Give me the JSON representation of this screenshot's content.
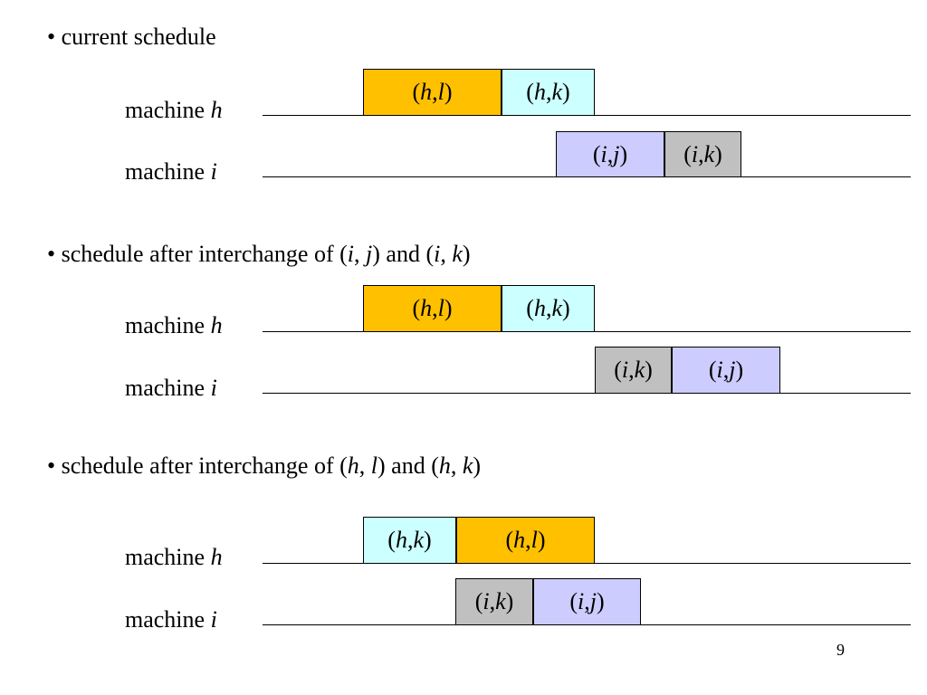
{
  "headings": [
    {
      "text": "current schedule"
    },
    {
      "pre": "schedule after interchange of (",
      "a1": "i",
      "s1": ", ",
      "b1": "j",
      "mid": ") and (",
      "a2": "i",
      "s2": ", ",
      "b2": "k",
      "post": ")"
    },
    {
      "pre": "schedule after interchange of (",
      "a1": "h",
      "s1": ", ",
      "b1": "l",
      "mid": ") and (",
      "a2": "h",
      "s2": ", ",
      "b2": "k",
      "post": ")"
    }
  ],
  "bullet": "•",
  "machine_word": "machine",
  "machines": [
    "h",
    "i"
  ],
  "colors": {
    "hl": "#ffc000",
    "hk": "#ccffff",
    "ij": "#ccccff",
    "ik": "#c0c0c0"
  },
  "ops": {
    "hl": {
      "a": "h",
      "b": "l"
    },
    "hk": {
      "a": "h",
      "b": "k"
    },
    "ij": {
      "a": "i",
      "b": "j"
    },
    "ik": {
      "a": "i",
      "b": "k"
    }
  },
  "page_number": "9"
}
